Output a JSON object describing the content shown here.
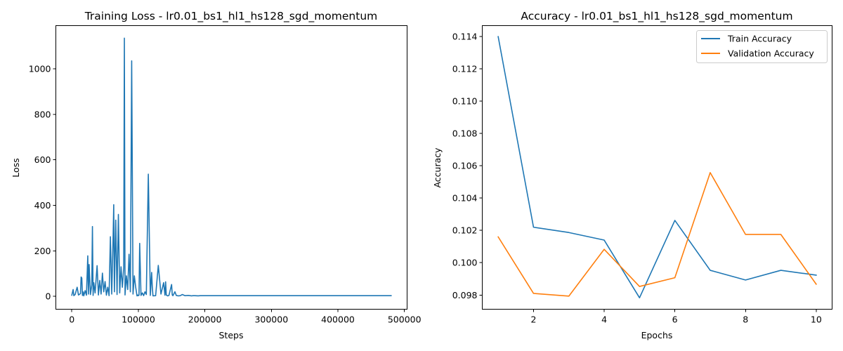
{
  "chart_data": [
    {
      "type": "line",
      "title": "Training Loss - lr0.01_bs1_hl1_hs128_sgd_momentum",
      "xlabel": "Steps",
      "ylabel": "Loss",
      "xlim": [
        -24000,
        504000
      ],
      "ylim": [
        -56.7,
        1190
      ],
      "xticks": [
        0,
        100000,
        200000,
        300000,
        400000,
        500000
      ],
      "xtick_labels": [
        "0",
        "100000",
        "200000",
        "300000",
        "400000",
        "500000"
      ],
      "yticks": [
        0,
        200,
        400,
        600,
        800,
        1000
      ],
      "ytick_labels": [
        "0",
        "200",
        "400",
        "600",
        "800",
        "1000"
      ],
      "grid": false,
      "series": [
        {
          "color": "#1f77b4",
          "x": [
            0,
            2000,
            3000,
            5000,
            8000,
            10000,
            13000,
            14000,
            15000,
            16000,
            17000,
            18000,
            20000,
            22000,
            24000,
            25000,
            26000,
            28000,
            30000,
            31000,
            32000,
            33000,
            35000,
            38000,
            40000,
            42000,
            44000,
            46000,
            48000,
            50000,
            52000,
            54000,
            56000,
            58000,
            60000,
            62000,
            63000,
            64000,
            66000,
            68000,
            70000,
            72000,
            74000,
            76000,
            78000,
            79000,
            80000,
            82000,
            84000,
            86000,
            88000,
            90000,
            92000,
            94000,
            96000,
            98000,
            99000,
            100000,
            101000,
            102000,
            104000,
            106000,
            108000,
            110000,
            112000,
            115000,
            118000,
            120000,
            121000,
            122000,
            126000,
            130000,
            134000,
            138000,
            140000,
            141000,
            142000,
            144000,
            146000,
            150000,
            151000,
            152000,
            155000,
            157000,
            160000,
            163000,
            166000,
            170000,
            175000,
            180000,
            182000,
            185000,
            190000,
            193000,
            196000,
            200000,
            210000,
            220000,
            222000,
            230000,
            250000,
            280000,
            320000,
            360000,
            400000,
            440000,
            480000
          ],
          "y": [
            5,
            30,
            3,
            8,
            40,
            6,
            12,
            85,
            80,
            4,
            20,
            2,
            25,
            5,
            178,
            10,
            140,
            8,
            50,
            307,
            4,
            60,
            15,
            135,
            6,
            70,
            10,
            102,
            20,
            65,
            5,
            40,
            3,
            262,
            10,
            250,
            403,
            20,
            335,
            8,
            360,
            15,
            130,
            40,
            125,
            1135,
            6,
            90,
            30,
            185,
            20,
            1035,
            10,
            90,
            40,
            2,
            6,
            3,
            5,
            233,
            4,
            15,
            3,
            20,
            8,
            537,
            4,
            105,
            40,
            2,
            3,
            136,
            10,
            60,
            5,
            64,
            6,
            2,
            4,
            52,
            6,
            3,
            20,
            4,
            2,
            3,
            8,
            3,
            4,
            2,
            3,
            3,
            2,
            3,
            3,
            3,
            3,
            3,
            3,
            3,
            3,
            3,
            3,
            3,
            3,
            3,
            3
          ]
        }
      ]
    },
    {
      "type": "line",
      "title": "Accuracy - lr0.01_bs1_hl1_hs128_sgd_momentum",
      "xlabel": "Epochs",
      "ylabel": "Accuracy",
      "xlim": [
        0.55,
        10.45
      ],
      "ylim": [
        0.09712,
        0.11468
      ],
      "xticks": [
        2,
        4,
        6,
        8,
        10
      ],
      "xtick_labels": [
        "2",
        "4",
        "6",
        "8",
        "10"
      ],
      "yticks": [
        0.098,
        0.1,
        0.102,
        0.104,
        0.106,
        0.108,
        0.11,
        0.112,
        0.114
      ],
      "ytick_labels": [
        "0.098",
        "0.100",
        "0.102",
        "0.104",
        "0.106",
        "0.108",
        "0.110",
        "0.112",
        "0.114"
      ],
      "grid": false,
      "legend_position": "top-right",
      "x": [
        1,
        2,
        3,
        4,
        5,
        6,
        7,
        8,
        9,
        10
      ],
      "series": [
        {
          "name": "Train Accuracy",
          "color": "#1f77b4",
          "values": [
            0.114,
            0.1022,
            0.10187,
            0.1014,
            0.09783,
            0.10262,
            0.09953,
            0.09893,
            0.09953,
            0.09923
          ]
        },
        {
          "name": "Validation Accuracy",
          "color": "#ff7f0e",
          "values": [
            0.1016,
            0.0981,
            0.09793,
            0.10083,
            0.09853,
            0.09907,
            0.10558,
            0.10175,
            0.10175,
            0.09867
          ]
        }
      ]
    }
  ]
}
